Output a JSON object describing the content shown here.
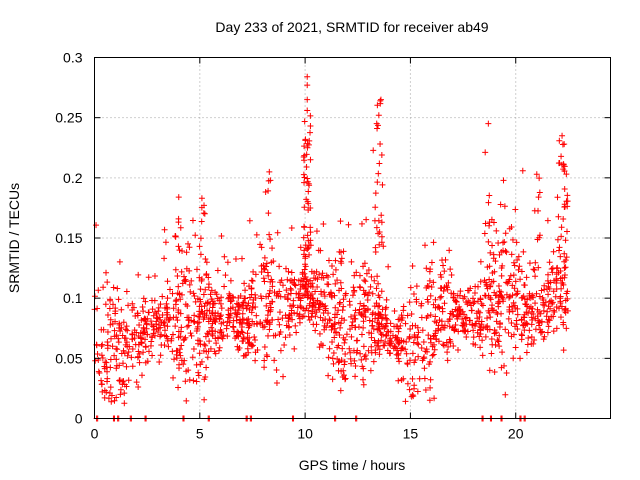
{
  "chart_data": {
    "type": "scatter",
    "title": "Day 233 of 2021, SRMTID for receiver ab49",
    "xlabel": "GPS time / hours",
    "ylabel": "SRMTID / TECUs",
    "xlim": [
      0,
      24.5
    ],
    "ylim": [
      0,
      0.3
    ],
    "x_ticks": [
      0,
      5,
      10,
      15,
      20
    ],
    "x_tick_labels": [
      "0",
      "5",
      "10",
      "15",
      "20"
    ],
    "y_ticks": [
      0,
      0.05,
      0.1,
      0.15,
      0.2,
      0.25,
      0.3
    ],
    "y_tick_labels": [
      "0",
      "0.05",
      "0.1",
      "0.15",
      "0.2",
      "0.25",
      "0.3"
    ],
    "grid": true,
    "marker": "plus",
    "series_color": "#ff0000",
    "x_range_of_points": [
      0,
      22.5
    ],
    "base_level": [
      [
        0.0,
        0.065
      ],
      [
        1.0,
        0.062
      ],
      [
        2.0,
        0.065
      ],
      [
        3.0,
        0.078
      ],
      [
        4.0,
        0.075
      ],
      [
        5.0,
        0.075
      ],
      [
        6.0,
        0.085
      ],
      [
        7.0,
        0.082
      ],
      [
        8.0,
        0.09
      ],
      [
        9.0,
        0.085
      ],
      [
        10.0,
        0.105
      ],
      [
        11.0,
        0.085
      ],
      [
        12.0,
        0.075
      ],
      [
        13.0,
        0.08
      ],
      [
        14.0,
        0.07
      ],
      [
        15.0,
        0.06
      ],
      [
        16.0,
        0.085
      ],
      [
        17.0,
        0.09
      ],
      [
        18.0,
        0.085
      ],
      [
        19.0,
        0.1
      ],
      [
        20.0,
        0.105
      ],
      [
        21.0,
        0.08
      ],
      [
        22.0,
        0.11
      ],
      [
        22.5,
        0.11
      ]
    ],
    "peaks": [
      {
        "x": 4.0,
        "y": 0.184
      },
      {
        "x": 5.1,
        "y": 0.183
      },
      {
        "x": 8.3,
        "y": 0.205
      },
      {
        "x": 10.1,
        "y": 0.284
      },
      {
        "x": 10.1,
        "y": 0.277
      },
      {
        "x": 10.1,
        "y": 0.265
      },
      {
        "x": 10.1,
        "y": 0.256
      },
      {
        "x": 13.6,
        "y": 0.265
      },
      {
        "x": 13.5,
        "y": 0.252
      },
      {
        "x": 13.4,
        "y": 0.245
      },
      {
        "x": 18.7,
        "y": 0.245
      },
      {
        "x": 21.0,
        "y": 0.203
      },
      {
        "x": 22.2,
        "y": 0.235
      },
      {
        "x": 22.3,
        "y": 0.228
      }
    ],
    "zero_points_x": [
      0.1,
      0.9,
      1.1,
      1.7,
      2.4,
      4.2,
      5.4,
      7.2,
      7.4,
      9.4,
      11.4,
      12.4,
      18.4,
      18.8,
      19.3,
      20.2,
      20.4
    ]
  }
}
